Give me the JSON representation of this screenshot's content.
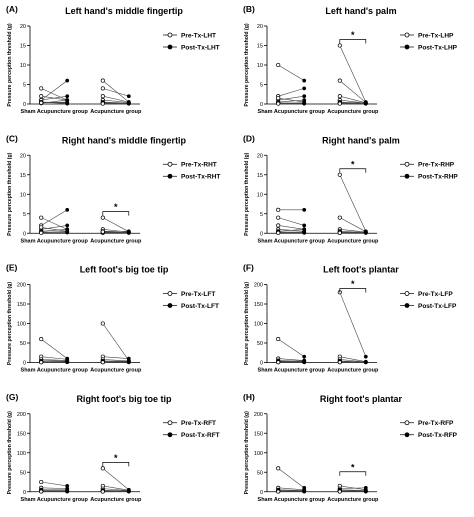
{
  "chart_data": [
    {
      "type": "line",
      "panel_label": "(A)",
      "title": "Left hand's middle fingertip",
      "ylabel": "Pressure perception threshold (g)",
      "ylim": [
        0,
        20
      ],
      "yticks": [
        0,
        5,
        10,
        15,
        20
      ],
      "categories": [
        "Sham Acupuncture group",
        "Acupuncture group"
      ],
      "series": [
        {
          "name": "Pre-Tx-LHT",
          "marker": "open-circle"
        },
        {
          "name": "Post-Tx-LHT",
          "marker": "filled-circle"
        }
      ],
      "pairs": [
        [
          [
            4,
            1
          ],
          [
            1,
            2
          ],
          [
            2,
            1
          ],
          [
            0.5,
            0.3
          ],
          [
            1,
            6
          ],
          [
            0.2,
            1
          ],
          [
            0.5,
            0.1
          ],
          [
            0.3,
            0.5
          ]
        ],
        [
          [
            6,
            0.5
          ],
          [
            4,
            2
          ],
          [
            2,
            0.5
          ],
          [
            1,
            0.4
          ],
          [
            0.5,
            0.2
          ],
          [
            0.3,
            0.2
          ],
          [
            0.2,
            0.1
          ],
          [
            0.1,
            0.1
          ]
        ]
      ],
      "significance": null
    },
    {
      "type": "line",
      "panel_label": "(B)",
      "title": "Left hand's palm",
      "ylabel": "Pressure perception threshold (g)",
      "ylim": [
        0,
        20
      ],
      "yticks": [
        0,
        5,
        10,
        15,
        20
      ],
      "categories": [
        "Sham Acupuncture group",
        "Acupuncture group"
      ],
      "series": [
        {
          "name": "Pre-Tx-LHP",
          "marker": "open-circle"
        },
        {
          "name": "Post-Tx-LHP",
          "marker": "filled-circle"
        }
      ],
      "pairs": [
        [
          [
            10,
            6
          ],
          [
            2,
            4
          ],
          [
            1,
            2
          ],
          [
            1.5,
            0.5
          ],
          [
            0.5,
            1
          ],
          [
            0.2,
            0.3
          ],
          [
            0.3,
            0.1
          ],
          [
            0.1,
            0.2
          ]
        ],
        [
          [
            15,
            0.5
          ],
          [
            6,
            0.4
          ],
          [
            2,
            0.3
          ],
          [
            1,
            0.2
          ],
          [
            0.5,
            0.2
          ],
          [
            0.3,
            0.1
          ],
          [
            0.2,
            0.1
          ],
          [
            0.1,
            0.1
          ]
        ]
      ],
      "significance": {
        "label": "*",
        "group": 1
      }
    },
    {
      "type": "line",
      "panel_label": "(C)",
      "title": "Right hand's middle fingertip",
      "ylabel": "Pressure perception threshold (g)",
      "ylim": [
        0,
        20
      ],
      "yticks": [
        0,
        5,
        10,
        15,
        20
      ],
      "categories": [
        "Sham Acupuncture group",
        "Acupuncture group"
      ],
      "series": [
        {
          "name": "Pre-Tx-RHT",
          "marker": "open-circle"
        },
        {
          "name": "Post-Tx-RHT",
          "marker": "filled-circle"
        }
      ],
      "pairs": [
        [
          [
            4,
            1
          ],
          [
            2,
            6
          ],
          [
            1,
            2
          ],
          [
            0.5,
            1
          ],
          [
            1.5,
            0.5
          ],
          [
            0.3,
            0.3
          ],
          [
            0.2,
            0.2
          ],
          [
            0.1,
            0.5
          ]
        ],
        [
          [
            4,
            0.4
          ],
          [
            1,
            0.3
          ],
          [
            0.5,
            0.5
          ],
          [
            0.3,
            0.2
          ],
          [
            0.2,
            0.1
          ],
          [
            0.1,
            0.1
          ],
          [
            0.2,
            0.2
          ],
          [
            0.4,
            0.1
          ]
        ]
      ],
      "significance": {
        "label": "*",
        "group": 1
      }
    },
    {
      "type": "line",
      "panel_label": "(D)",
      "title": "Right hand's palm",
      "ylabel": "Pressure perception threshold (g)",
      "ylim": [
        0,
        20
      ],
      "yticks": [
        0,
        5,
        10,
        15,
        20
      ],
      "categories": [
        "Sham Acupuncture group",
        "Acupuncture group"
      ],
      "series": [
        {
          "name": "Pre-Tx-RHP",
          "marker": "open-circle"
        },
        {
          "name": "Post-Tx-RHP",
          "marker": "filled-circle"
        }
      ],
      "pairs": [
        [
          [
            6,
            6
          ],
          [
            4,
            2
          ],
          [
            2,
            1
          ],
          [
            1,
            0.5
          ],
          [
            0.5,
            1
          ],
          [
            0.3,
            0.3
          ],
          [
            0.2,
            0.2
          ],
          [
            0.1,
            0.1
          ]
        ],
        [
          [
            15,
            0.5
          ],
          [
            4,
            0.4
          ],
          [
            1,
            0.3
          ],
          [
            0.5,
            0.2
          ],
          [
            0.3,
            0.2
          ],
          [
            0.2,
            0.1
          ],
          [
            0.1,
            0.1
          ],
          [
            0.1,
            0.1
          ]
        ]
      ],
      "significance": {
        "label": "*",
        "group": 1
      }
    },
    {
      "type": "line",
      "panel_label": "(E)",
      "title": "Left foot's big toe tip",
      "ylabel": "Pressure perception threshold (g)",
      "ylim": [
        0,
        200
      ],
      "yticks": [
        0,
        50,
        100,
        150,
        200
      ],
      "categories": [
        "Sham Acupuncture group",
        "Acupuncture group"
      ],
      "series": [
        {
          "name": "Pre-Tx-LFT",
          "marker": "open-circle"
        },
        {
          "name": "Post-Tx-LFT",
          "marker": "filled-circle"
        }
      ],
      "pairs": [
        [
          [
            60,
            10
          ],
          [
            15,
            8
          ],
          [
            8,
            5
          ],
          [
            4,
            6
          ],
          [
            2,
            3
          ],
          [
            1,
            2
          ],
          [
            1,
            1
          ],
          [
            0.5,
            1
          ]
        ],
        [
          [
            100,
            5
          ],
          [
            15,
            10
          ],
          [
            8,
            4
          ],
          [
            4,
            3
          ],
          [
            2,
            2
          ],
          [
            1,
            1
          ],
          [
            1,
            1
          ],
          [
            0.5,
            0.5
          ]
        ]
      ],
      "significance": null
    },
    {
      "type": "line",
      "panel_label": "(F)",
      "title": "Left foot's plantar",
      "ylabel": "Pressure perception threshold (g)",
      "ylim": [
        0,
        200
      ],
      "yticks": [
        0,
        50,
        100,
        150,
        200
      ],
      "categories": [
        "Sham Acupuncture group",
        "Acupuncture group"
      ],
      "series": [
        {
          "name": "Pre-Tx-LFP",
          "marker": "open-circle"
        },
        {
          "name": "Post-Tx-LFP",
          "marker": "filled-circle"
        }
      ],
      "pairs": [
        [
          [
            60,
            15
          ],
          [
            10,
            5
          ],
          [
            5,
            3
          ],
          [
            3,
            4
          ],
          [
            2,
            2
          ],
          [
            1,
            1
          ],
          [
            1,
            1
          ],
          [
            0.5,
            0.5
          ]
        ],
        [
          [
            180,
            15
          ],
          [
            15,
            2
          ],
          [
            8,
            1
          ],
          [
            4,
            1
          ],
          [
            2,
            0.5
          ],
          [
            1,
            0.5
          ],
          [
            1,
            0.5
          ],
          [
            0.5,
            0.5
          ]
        ]
      ],
      "significance": {
        "label": "*",
        "group": 1
      }
    },
    {
      "type": "line",
      "panel_label": "(G)",
      "title": "Right foot's big toe tip",
      "ylabel": "Pressure perception threshold (g)",
      "ylim": [
        0,
        200
      ],
      "yticks": [
        0,
        50,
        100,
        150,
        200
      ],
      "categories": [
        "Sham Acupuncture group",
        "Acupuncture group"
      ],
      "series": [
        {
          "name": "Pre-Tx-RFT",
          "marker": "open-circle"
        },
        {
          "name": "Post-Tx-RFT",
          "marker": "filled-circle"
        }
      ],
      "pairs": [
        [
          [
            25,
            15
          ],
          [
            10,
            8
          ],
          [
            5,
            5
          ],
          [
            3,
            3
          ],
          [
            2,
            2
          ],
          [
            1,
            1
          ],
          [
            1,
            1
          ],
          [
            0.5,
            0.5
          ]
        ],
        [
          [
            60,
            5
          ],
          [
            15,
            4
          ],
          [
            8,
            3
          ],
          [
            4,
            2
          ],
          [
            2,
            1
          ],
          [
            1,
            1
          ],
          [
            1,
            1
          ],
          [
            0.5,
            0.5
          ]
        ]
      ],
      "significance": {
        "label": "*",
        "group": 1
      }
    },
    {
      "type": "line",
      "panel_label": "(H)",
      "title": "Right foot's plantar",
      "ylabel": "Pressure perception threshold (g)",
      "ylim": [
        0,
        200
      ],
      "yticks": [
        0,
        50,
        100,
        150,
        200
      ],
      "categories": [
        "Sham Acupuncture group",
        "Acupuncture group"
      ],
      "series": [
        {
          "name": "Pre-Tx-RFP",
          "marker": "open-circle"
        },
        {
          "name": "Post-Tx-RFP",
          "marker": "filled-circle"
        }
      ],
      "pairs": [
        [
          [
            60,
            10
          ],
          [
            10,
            5
          ],
          [
            5,
            3
          ],
          [
            3,
            2
          ],
          [
            2,
            2
          ],
          [
            1,
            1
          ],
          [
            1,
            1
          ],
          [
            0.5,
            0.5
          ]
        ],
        [
          [
            15,
            5
          ],
          [
            8,
            10
          ],
          [
            5,
            3
          ],
          [
            3,
            2
          ],
          [
            2,
            1
          ],
          [
            1,
            1
          ],
          [
            1,
            1
          ],
          [
            0.5,
            0.5
          ]
        ]
      ],
      "significance": {
        "label": "*",
        "group": 1
      }
    }
  ]
}
